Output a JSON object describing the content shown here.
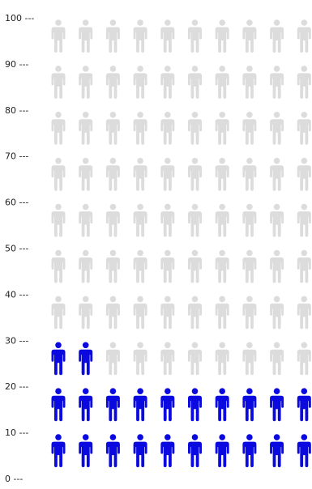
{
  "chart_data": {
    "type": "pictograph",
    "total_icons": 100,
    "highlighted_icons": 22,
    "icons_per_row": 10,
    "y_ticks": [
      {
        "value": 0,
        "label": "0 ---"
      },
      {
        "value": 10,
        "label": "10 ---"
      },
      {
        "value": 20,
        "label": "20 ---"
      },
      {
        "value": 30,
        "label": "30 ---"
      },
      {
        "value": 40,
        "label": "40 ---"
      },
      {
        "value": 50,
        "label": "50 ---"
      },
      {
        "value": 60,
        "label": "60 ---"
      },
      {
        "value": 70,
        "label": "70 ---"
      },
      {
        "value": 80,
        "label": "80 ---"
      },
      {
        "value": 90,
        "label": "90 ---"
      },
      {
        "value": 100,
        "label": "100 ---"
      }
    ],
    "ylim": [
      0,
      100
    ],
    "icon": "person-icon",
    "colors": {
      "highlight": "#0a0ae0",
      "base": "#dcdcdc",
      "text": "#222222"
    }
  }
}
